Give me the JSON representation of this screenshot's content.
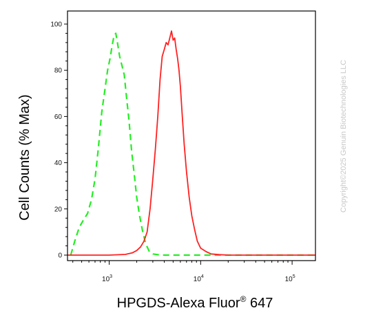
{
  "chart_data": {
    "type": "line",
    "xscale": "log",
    "xlim": [
      350,
      180000
    ],
    "ylim": [
      0,
      100
    ],
    "xlabel": {
      "main": "HPGDS-Alexa Fluor",
      "sup": "®",
      "tail": " 647"
    },
    "ylabel": "Cell Counts (% Max)",
    "yticks": [
      {
        "v": 0,
        "label": "0"
      },
      {
        "v": 20,
        "label": "20"
      },
      {
        "v": 40,
        "label": "40"
      },
      {
        "v": 60,
        "label": "60"
      },
      {
        "v": 80,
        "label": "80"
      },
      {
        "v": 100,
        "label": "100"
      }
    ],
    "xticks": [
      {
        "v": 1000,
        "base": "10",
        "exp": "3"
      },
      {
        "v": 10000,
        "base": "10",
        "exp": "4"
      },
      {
        "v": 100000,
        "base": "10",
        "exp": "5"
      }
    ],
    "series": [
      {
        "style": "dashed",
        "color": "#22ee22",
        "x": [
          380,
          420,
          470,
          520,
          580,
          640,
          700,
          760,
          830,
          900,
          960,
          1020,
          1080,
          1130,
          1180,
          1230,
          1300,
          1380,
          1460,
          1550,
          1650,
          1760,
          1880,
          2000,
          2150,
          2300,
          2500,
          2750,
          3000,
          3400,
          4000,
          6000,
          10000,
          30000,
          180000
        ],
        "y": [
          0,
          6,
          12,
          15,
          18,
          24,
          33,
          46,
          62,
          72,
          80,
          85,
          91,
          95,
          96,
          92,
          86,
          82,
          78,
          68,
          58,
          45,
          35,
          25,
          17,
          11,
          5,
          1.5,
          0.5,
          0.2,
          0,
          0,
          0,
          0,
          0
        ]
      },
      {
        "style": "solid",
        "color": "#ff2020",
        "x": [
          350,
          1000,
          1500,
          1800,
          2000,
          2200,
          2400,
          2600,
          2800,
          3000,
          3200,
          3400,
          3600,
          3800,
          4000,
          4200,
          4400,
          4600,
          4800,
          5000,
          5200,
          5400,
          5600,
          5800,
          6000,
          6300,
          6600,
          7000,
          7500,
          8000,
          8600,
          9200,
          10000,
          11500,
          13000,
          16000,
          20000,
          40000,
          180000
        ],
        "y": [
          0,
          0,
          0.3,
          1,
          2,
          3.5,
          6,
          10,
          20,
          33,
          46,
          60,
          76,
          86,
          89,
          92,
          91,
          94,
          97,
          93,
          94,
          89,
          85,
          80,
          73,
          60,
          48,
          36,
          25,
          17,
          11,
          6,
          3,
          1.5,
          0.5,
          0.2,
          0,
          0,
          0
        ]
      }
    ]
  },
  "watermark": "Copyright©2025 Genuin Biotechnologies LLC"
}
